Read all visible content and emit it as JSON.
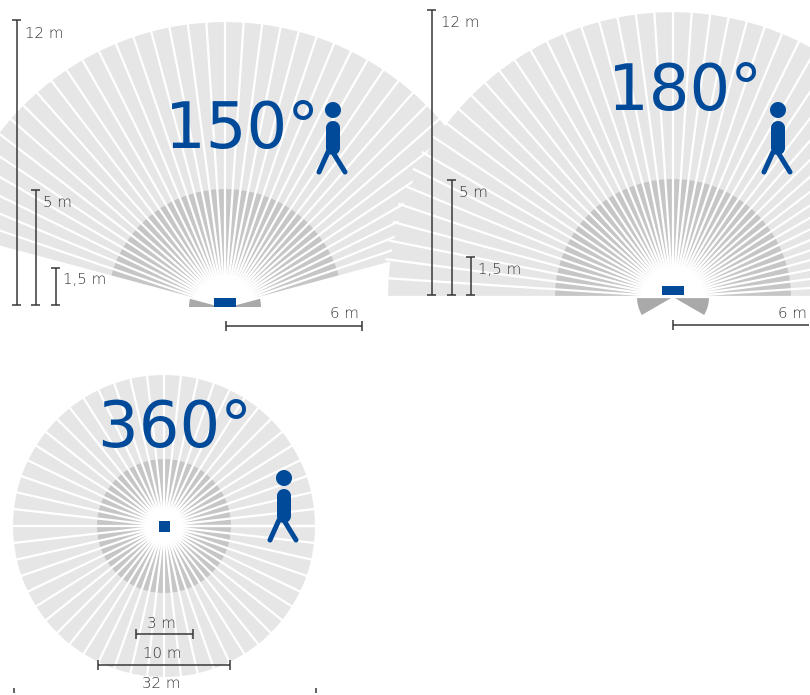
{
  "colors": {
    "outer_zone": "#e6e6e6",
    "middle_zone": "#c6c6c6",
    "inner_zone": "#a9a9a9",
    "ray": "#ffffff",
    "accent": "#004a99",
    "scale": "#333333"
  },
  "diagram_150": {
    "angle_label": "150°",
    "heights": [
      "12 m",
      "5 m",
      "1,5 m"
    ],
    "range_label": "6 m",
    "icons": [
      "sensor-icon",
      "person-walking-icon"
    ]
  },
  "diagram_180": {
    "angle_label": "180°",
    "heights": [
      "12 m",
      "5 m",
      "1,5 m"
    ],
    "range_label": "6 m",
    "icons": [
      "sensor-icon",
      "person-walking-icon"
    ]
  },
  "diagram_360": {
    "angle_label": "360°",
    "diameters": [
      "3 m",
      "10 m",
      "32 m"
    ],
    "icons": [
      "sensor-icon",
      "person-walking-icon"
    ]
  }
}
